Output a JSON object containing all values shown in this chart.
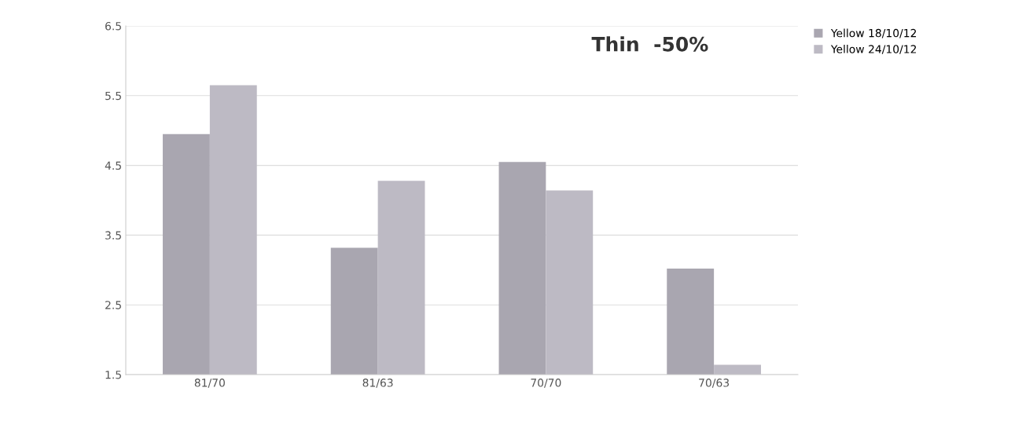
{
  "chart_data": {
    "type": "bar",
    "title": "Thin  -50%",
    "categories": [
      "81/70",
      "81/63",
      "70/70",
      "70/63"
    ],
    "series": [
      {
        "name": "Yellow 18/10/12",
        "color": "#a9a6b0",
        "values": [
          4.95,
          3.32,
          4.55,
          3.02
        ]
      },
      {
        "name": "Yellow 24/10/12",
        "color": "#bdbac4",
        "values": [
          5.65,
          4.28,
          4.14,
          1.64
        ]
      }
    ],
    "ylim": [
      1.5,
      6.5
    ],
    "yticks": [
      1.5,
      2.5,
      3.5,
      4.5,
      5.5,
      6.5
    ],
    "grid": "y",
    "legend": "top right"
  }
}
